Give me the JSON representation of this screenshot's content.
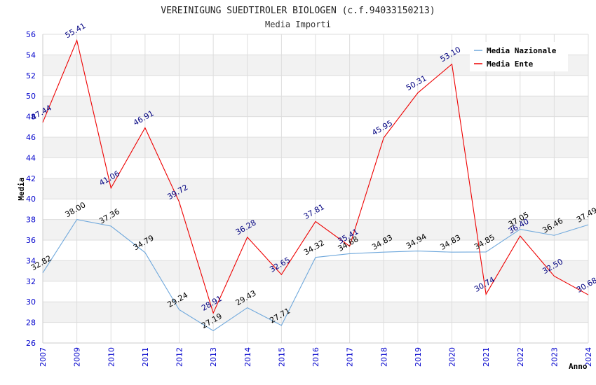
{
  "chart_data": {
    "type": "line",
    "title": "VEREINIGUNG SUEDTIROLER BIOLOGEN (c.f.94033150213)",
    "subtitle": "Media Importi",
    "xlabel": "Anno",
    "ylabel": "Media",
    "ylim": [
      26,
      56
    ],
    "yticks": [
      "26",
      "28",
      "30",
      "32",
      "34",
      "36",
      "38",
      "40",
      "42",
      "44",
      "46",
      "48",
      "50",
      "52",
      "54",
      "56"
    ],
    "categories": [
      "2007",
      "2009",
      "2010",
      "2011",
      "2012",
      "2013",
      "2014",
      "2015",
      "2016",
      "2017",
      "2018",
      "2019",
      "2020",
      "2021",
      "2022",
      "2023",
      "2024"
    ],
    "series": [
      {
        "name": "Media Nazionale",
        "color": "#6fa8dc",
        "label_color": "#000000",
        "values": [
          32.82,
          38.0,
          37.36,
          34.79,
          29.24,
          27.19,
          29.43,
          27.71,
          34.32,
          34.68,
          34.83,
          34.94,
          34.83,
          34.85,
          37.05,
          36.46,
          37.49
        ],
        "labels": [
          "32.82",
          "38.00",
          "37.36",
          "34.79",
          "29.24",
          "27.19",
          "29.43",
          "27.71",
          "34.32",
          "34.68",
          "34.83",
          "34.94",
          "34.83",
          "34.85",
          "37.05",
          "36.46",
          "37.49"
        ]
      },
      {
        "name": "Media Ente",
        "color": "#ee0000",
        "label_color": "#000080",
        "values": [
          47.44,
          55.41,
          41.06,
          46.91,
          39.72,
          28.91,
          36.28,
          32.65,
          37.81,
          35.41,
          45.95,
          50.31,
          53.1,
          30.74,
          36.4,
          32.5,
          30.68
        ],
        "labels": [
          "47.44",
          "55.41",
          "41.06",
          "46.91",
          "39.72",
          "28.91",
          "36.28",
          "32.65",
          "37.81",
          "35.41",
          "45.95",
          "50.31",
          "53.10",
          "30.74",
          "36.40",
          "32.50",
          "30.68"
        ]
      }
    ],
    "legend": {
      "position": "top-right",
      "entries": [
        "Media Nazionale",
        "Media Ente"
      ]
    },
    "grid": true
  }
}
